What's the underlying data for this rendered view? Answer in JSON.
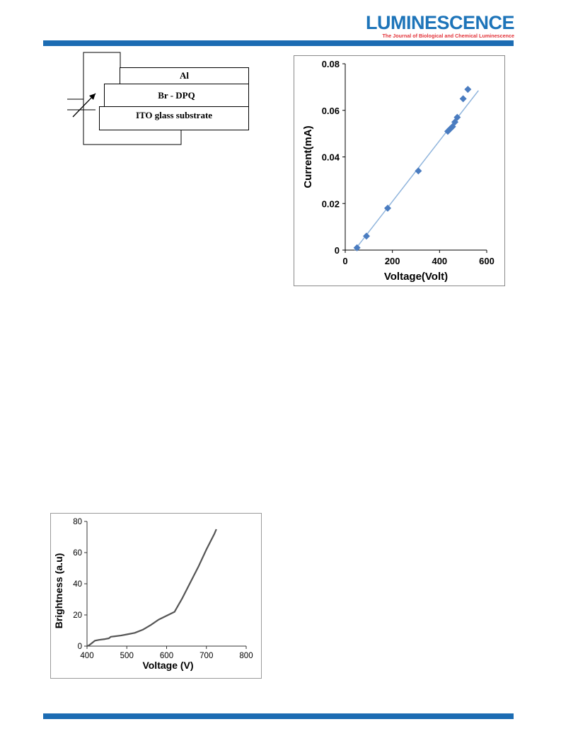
{
  "header": {
    "journal_name": "LUMINESCENCE",
    "journal_subtitle": "The Journal of Biological and Chemical Luminescence",
    "accent_color": "#1c6cb3",
    "subtitle_color": "#e3343a"
  },
  "device_diagram": {
    "layers": [
      "Al",
      "Br - DPQ",
      "ITO glass substrate"
    ],
    "power_source_icon": "variable-voltage-source-icon"
  },
  "chart_data": [
    {
      "type": "scatter",
      "title": "",
      "xlabel": "Voltage(Volt)",
      "ylabel": "Current(mA)",
      "xlim": [
        0,
        600
      ],
      "ylim": [
        0,
        0.08
      ],
      "xticks": [
        "0",
        "200",
        "400",
        "600"
      ],
      "yticks": [
        "0",
        "0.02",
        "0.04",
        "0.06",
        "0.08"
      ],
      "marker_color": "#4a7cc0",
      "trendline_color": "#8fb4dc",
      "grid": false,
      "series": [
        {
          "x": [
            50,
            90,
            180,
            310,
            435,
            445,
            455,
            465,
            475,
            500,
            520
          ],
          "y": [
            0.001,
            0.006,
            0.018,
            0.034,
            0.051,
            0.052,
            0.053,
            0.055,
            0.057,
            0.065,
            0.069
          ]
        }
      ],
      "trendline": {
        "x": [
          40,
          565
        ],
        "y": [
          0.0,
          0.0685
        ]
      }
    },
    {
      "type": "line",
      "title": "",
      "xlabel": "Voltage (V)",
      "ylabel": "Brightness (a.u)",
      "xlim": [
        400,
        800
      ],
      "ylim": [
        0,
        80
      ],
      "xticks": [
        "400",
        "500",
        "600",
        "700",
        "800"
      ],
      "yticks": [
        "0",
        "20",
        "40",
        "60",
        "80"
      ],
      "line_color": "#555555",
      "grid": false,
      "series": [
        {
          "x": [
            400,
            405,
            410,
            420,
            430,
            445,
            455,
            460,
            470,
            485,
            500,
            520,
            540,
            560,
            580,
            600,
            620,
            640,
            660,
            680,
            700,
            720,
            725
          ],
          "y": [
            0,
            0.5,
            1.5,
            3.5,
            4.0,
            4.5,
            5.0,
            6.0,
            6.3,
            6.8,
            7.5,
            8.5,
            10.5,
            13.5,
            17,
            19.5,
            22,
            31,
            41,
            51,
            62,
            72,
            75
          ]
        }
      ]
    }
  ]
}
